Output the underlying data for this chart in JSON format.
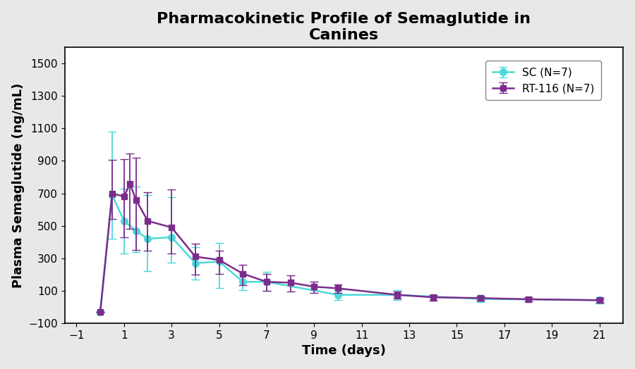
{
  "title": "Pharmacokinetic Profile of Semaglutide in\nCanines",
  "xlabel": "Time (days)",
  "ylabel": "Plasma Semaglutide (ng/mL)",
  "xlim": [
    -1.5,
    22
  ],
  "ylim": [
    -100,
    1600
  ],
  "xticks": [
    -1,
    1,
    3,
    5,
    7,
    9,
    11,
    13,
    15,
    17,
    19,
    21
  ],
  "yticks": [
    -100,
    100,
    300,
    500,
    700,
    900,
    1100,
    1300,
    1500
  ],
  "sc_color": "#4DD9D9",
  "rt_color": "#7B2D8B",
  "sc_label": "SC (N=7)",
  "rt_label": "RT-116 (N=7)",
  "sc_x": [
    0.0,
    0.5,
    1.0,
    1.5,
    2.0,
    3.0,
    4.0,
    5.0,
    6.0,
    7.0,
    10.0,
    12.5,
    16.0,
    21.0
  ],
  "sc_y": [
    -30,
    690,
    530,
    470,
    420,
    430,
    270,
    280,
    155,
    155,
    75,
    75,
    50,
    42
  ],
  "sc_yerr_lo": [
    0,
    270,
    200,
    130,
    200,
    155,
    100,
    165,
    50,
    55,
    30,
    30,
    20,
    20
  ],
  "sc_yerr_hi": [
    0,
    390,
    200,
    270,
    270,
    245,
    100,
    115,
    50,
    60,
    30,
    30,
    20,
    20
  ],
  "rt_x": [
    0.0,
    0.5,
    1.0,
    1.25,
    1.5,
    2.0,
    3.0,
    4.0,
    5.0,
    6.0,
    7.0,
    8.0,
    9.0,
    10.0,
    12.5,
    14.0,
    16.0,
    18.0,
    21.0
  ],
  "rt_y": [
    -30,
    700,
    680,
    760,
    660,
    530,
    490,
    310,
    290,
    205,
    155,
    150,
    125,
    115,
    75,
    60,
    55,
    48,
    42
  ],
  "rt_yerr_lo": [
    0,
    160,
    250,
    280,
    310,
    185,
    160,
    110,
    85,
    70,
    55,
    55,
    40,
    30,
    25,
    20,
    18,
    15,
    15
  ],
  "rt_yerr_hi": [
    0,
    205,
    230,
    185,
    260,
    175,
    235,
    80,
    55,
    55,
    50,
    45,
    30,
    25,
    20,
    15,
    12,
    12,
    12
  ],
  "background_color": "#ffffff",
  "outer_bg": "#E8E8E8",
  "title_fontsize": 16,
  "axis_fontsize": 13,
  "tick_fontsize": 11
}
